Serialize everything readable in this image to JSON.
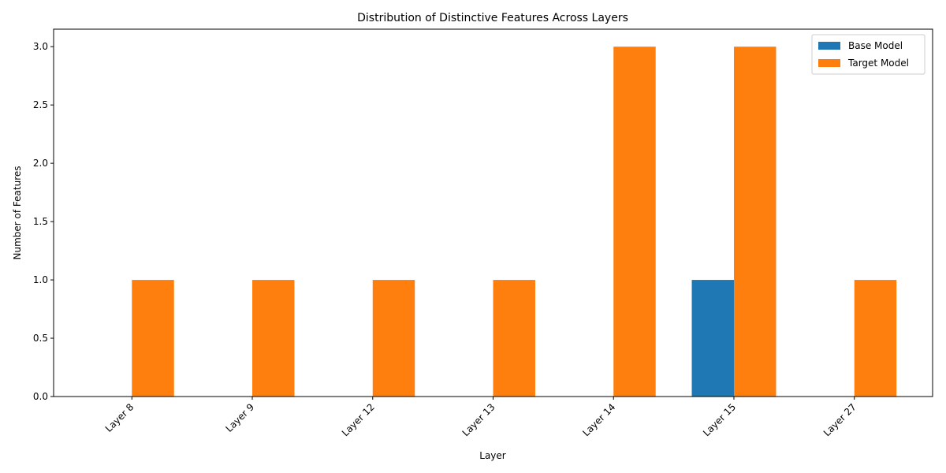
{
  "chart_data": {
    "type": "bar",
    "title": "Distribution of Distinctive Features Across Layers",
    "xlabel": "Layer",
    "ylabel": "Number of Features",
    "categories": [
      "Layer 8",
      "Layer 9",
      "Layer 12",
      "Layer 13",
      "Layer 14",
      "Layer 15",
      "Layer 27"
    ],
    "series": [
      {
        "name": "Base Model",
        "color": "#1f77b4",
        "values": [
          0,
          0,
          0,
          0,
          0,
          1,
          0
        ]
      },
      {
        "name": "Target Model",
        "color": "#ff7f0e",
        "values": [
          1,
          1,
          1,
          1,
          3,
          3,
          1
        ]
      }
    ],
    "ylim": [
      0,
      3.15
    ],
    "yticks": [
      "0.0",
      "0.5",
      "1.0",
      "1.5",
      "2.0",
      "2.5",
      "3.0"
    ],
    "legend_position": "top-right",
    "grid": false
  }
}
